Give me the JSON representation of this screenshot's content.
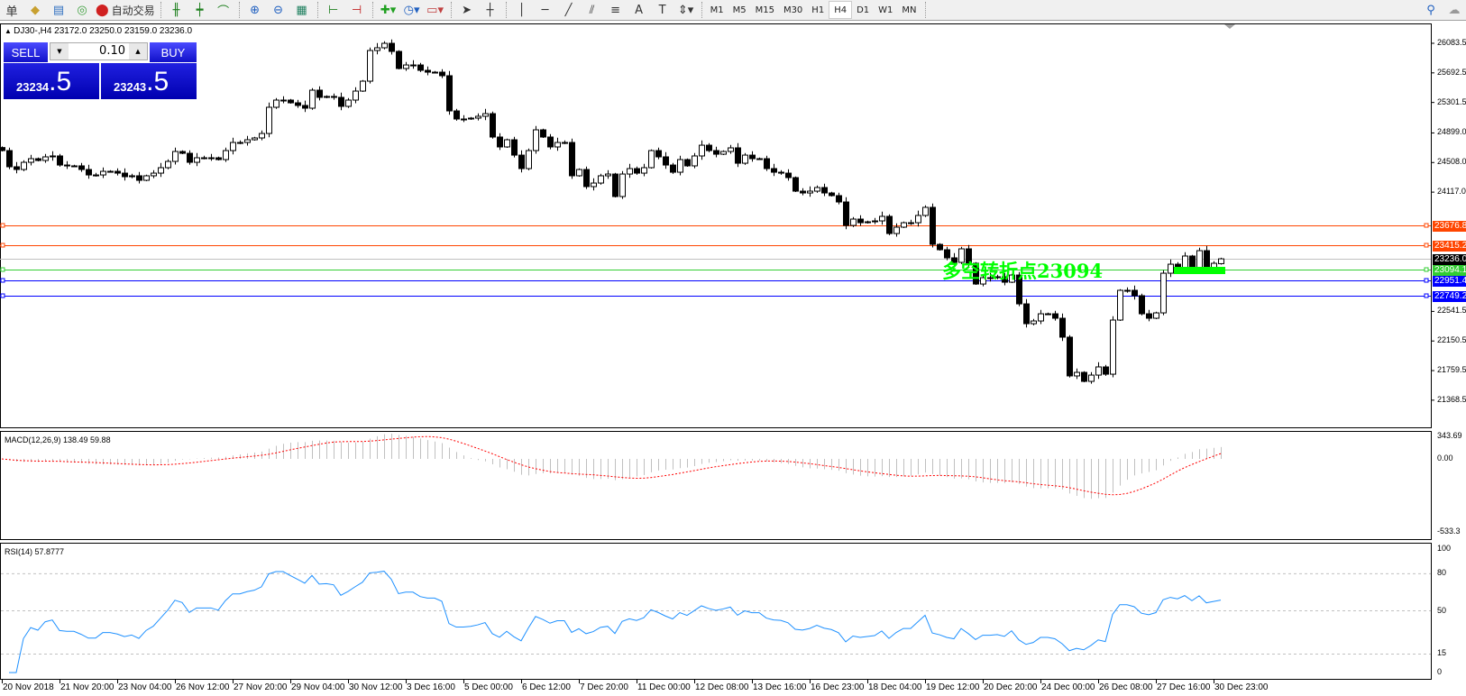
{
  "toolbar": {
    "items": [
      {
        "name": "orders-menu-fragment",
        "label": "单"
      },
      {
        "name": "navigator-icon",
        "glyph": "◆"
      },
      {
        "name": "history-icon",
        "glyph": "▤"
      },
      {
        "name": "signals-icon",
        "glyph": "◎"
      }
    ],
    "autotrade_label": "自动交易",
    "timeframes": [
      "M1",
      "M5",
      "M15",
      "M30",
      "H1",
      "H4",
      "D1",
      "W1",
      "MN"
    ],
    "active_timeframe": "H4"
  },
  "chart": {
    "symbol_info": "DJ30-,H4  23172.0 23250.0 23159.0 23236.0",
    "trade": {
      "sell_label": "SELL",
      "buy_label": "BUY",
      "lot": "0.10",
      "sell_main": "23234",
      "sell_frac": ".5",
      "buy_main": "23243",
      "buy_frac": ".5"
    },
    "price_ticks": [
      "26083.5",
      "25692.5",
      "25301.5",
      "24899.0",
      "24508.0",
      "24117.0",
      "22541.5",
      "22150.5",
      "21759.5",
      "21368.5"
    ],
    "hlines": [
      {
        "price": 23676.8,
        "label": "23676.8",
        "color": "#ff4500"
      },
      {
        "price": 23415.2,
        "label": "23415.2",
        "color": "#ff4500"
      },
      {
        "price": 23236.0,
        "label": "23236.0",
        "color": "#c0c0c0",
        "label_bg": "#000000"
      },
      {
        "price": 23094.1,
        "label": "23094.1",
        "color": "#32cd32"
      },
      {
        "price": 22951.4,
        "label": "22951.4",
        "color": "#0000ff"
      },
      {
        "price": 22749.2,
        "label": "22749.2",
        "color": "#0000ff"
      }
    ],
    "annotation": {
      "text": "多空转折点23094",
      "price": 23094,
      "color": "#00ff00"
    },
    "time_ticks": [
      "20 Nov 2018",
      "21 Nov 20:00",
      "23 Nov 04:00",
      "26 Nov 12:00",
      "27 Nov 20:00",
      "29 Nov 04:00",
      "30 Nov 12:00",
      "3 Dec 16:00",
      "5 Dec 00:00",
      "6 Dec 12:00",
      "7 Dec 20:00",
      "11 Dec 00:00",
      "12 Dec 08:00",
      "13 Dec 16:00",
      "16 Dec 23:00",
      "18 Dec 04:00",
      "19 Dec 12:00",
      "20 Dec 20:00",
      "24 Dec 00:00",
      "26 Dec 08:00",
      "27 Dec 16:00",
      "30 Dec 23:00"
    ],
    "last_bar": {
      "open": 23172.0,
      "high": 23250.0,
      "low": 23159.0,
      "close": 23236.0
    },
    "closes": [
      24666,
      24452,
      24416,
      24511,
      24559,
      24535,
      24583,
      24595,
      24475,
      24464,
      24464,
      24416,
      24344,
      24344,
      24392,
      24392,
      24368,
      24321,
      24333,
      24273,
      24333,
      24368,
      24440,
      24523,
      24654,
      24630,
      24511,
      24571,
      24571,
      24571,
      24547,
      24666,
      24773,
      24773,
      24809,
      24833,
      24892,
      25238,
      25333,
      25333,
      25297,
      25262,
      25226,
      25464,
      25369,
      25381,
      25369,
      25250,
      25333,
      25452,
      25583,
      25988,
      26024,
      26083,
      25976,
      25750,
      25797,
      25797,
      25726,
      25702,
      25702,
      25655,
      25190,
      25083,
      25083,
      25095,
      25119,
      25154,
      24845,
      24714,
      24809,
      24606,
      24428,
      24666,
      24940,
      24845,
      24714,
      24773,
      24773,
      24333,
      24416,
      24190,
      24237,
      24333,
      24356,
      24059,
      24356,
      24428,
      24368,
      24440,
      24666,
      24583,
      24475,
      24380,
      24547,
      24464,
      24595,
      24737,
      24666,
      24618,
      24654,
      24702,
      24499,
      24606,
      24559,
      24559,
      24428,
      24380,
      24368,
      24309,
      24130,
      24106,
      24130,
      24178,
      24106,
      24071,
      23987,
      23677,
      23761,
      23713,
      23725,
      23737,
      23797,
      23570,
      23654,
      23713,
      23713,
      23809,
      23916,
      23427,
      23356,
      23249,
      23189,
      23368,
      23177,
      22903,
      22987,
      22987,
      22999,
      22927,
      23022,
      22641,
      22379,
      22415,
      22510,
      22510,
      22451,
      22201,
      21689,
      21736,
      21617,
      21700,
      21808,
      21712,
      22427,
      22820,
      22820,
      22749,
      22510,
      22451,
      22522,
      23046,
      23165,
      23118,
      23273,
      23118,
      23344,
      23118,
      23177,
      23236
    ]
  },
  "macd": {
    "label": "MACD(12,26,9) 138.49 59.88",
    "fast": 12,
    "slow": 26,
    "signal": 9,
    "ticks": [
      "343.69",
      "0.00",
      "-533.3"
    ],
    "hist_color": "#c0c0c0",
    "signal_color": "#ff0000"
  },
  "rsi": {
    "label": "RSI(14) 57.8777",
    "period": 14,
    "ticks": [
      "100",
      "80",
      "50",
      "15",
      "0"
    ],
    "levels": [
      80,
      50,
      15
    ],
    "color": "#1e90ff"
  }
}
